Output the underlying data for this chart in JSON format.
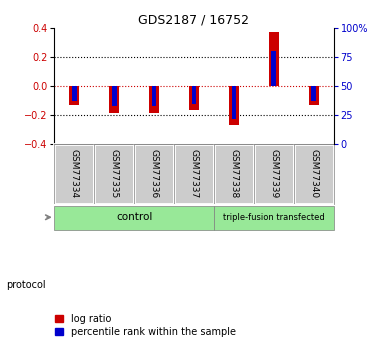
{
  "title": "GDS2187 / 16752",
  "samples": [
    "GSM77334",
    "GSM77335",
    "GSM77336",
    "GSM77337",
    "GSM77338",
    "GSM77339",
    "GSM77340"
  ],
  "log_ratio": [
    -0.13,
    -0.185,
    -0.185,
    -0.165,
    -0.27,
    0.37,
    -0.13
  ],
  "percentile_rank": [
    37,
    33,
    33,
    35,
    22,
    80,
    37
  ],
  "groups": [
    {
      "label": "control",
      "start": 0,
      "end": 4,
      "color": "#98E898"
    },
    {
      "label": "triple-fusion transfected",
      "start": 4,
      "end": 7,
      "color": "#98E898"
    }
  ],
  "ylim": [
    -0.4,
    0.4
  ],
  "right_ylim": [
    0,
    100
  ],
  "right_yticks": [
    0,
    25,
    50,
    75,
    100
  ],
  "right_yticklabels": [
    "0",
    "25",
    "50",
    "75",
    "100%"
  ],
  "left_yticks": [
    -0.4,
    -0.2,
    0,
    0.2,
    0.4
  ],
  "bar_color_red": "#CC0000",
  "bar_color_blue": "#0000CC",
  "tick_color_left": "#CC0000",
  "tick_color_right": "#0000CC",
  "hline_color_red": "#CC0000",
  "hline_color_black": "#000000",
  "background_color": "#FFFFFF",
  "sample_box_color": "#CCCCCC",
  "bar_width": 0.25,
  "blue_bar_width": 0.12,
  "protocol_label": "protocol",
  "legend_items": [
    "log ratio",
    "percentile rank within the sample"
  ]
}
